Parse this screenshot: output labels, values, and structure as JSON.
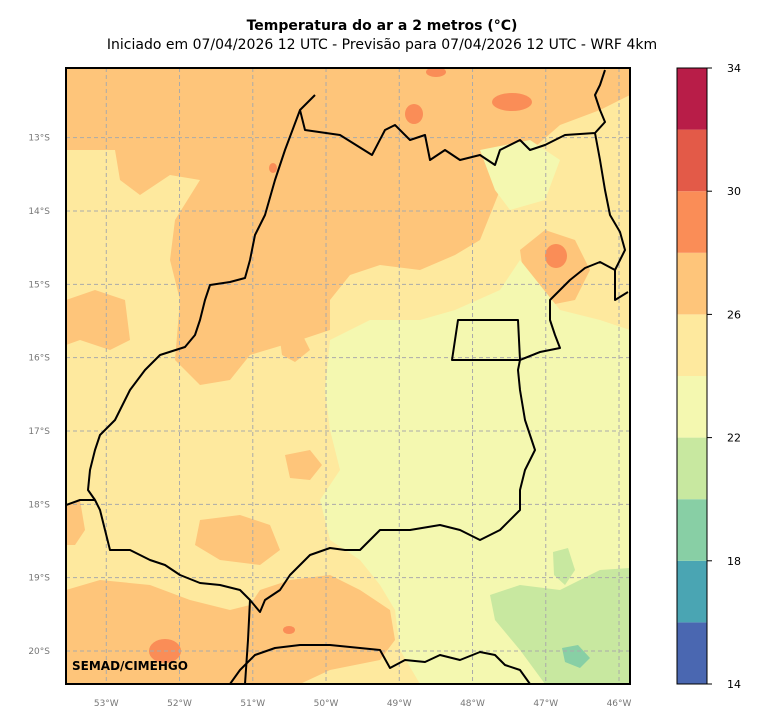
{
  "header": {
    "title": "Temperatura do ar a 2 metros (°C)",
    "subtitle": "Iniciado em 07/04/2026 12 UTC - Previsão para 07/04/2026 12 UTC - WRF 4km"
  },
  "map": {
    "credit": "SEMAD/CIMEHGO",
    "lon_ticks": [
      "53°W",
      "52°W",
      "51°W",
      "50°W",
      "49°W",
      "48°W",
      "47°W",
      "46°W"
    ],
    "lat_ticks": [
      "13°S",
      "14°S",
      "15°S",
      "16°S",
      "17°S",
      "18°S",
      "19°S",
      "20°S"
    ],
    "lon_range": [
      -53.55,
      -45.85
    ],
    "lat_range": [
      -20.45,
      -12.05
    ]
  },
  "colorbar": {
    "ticks": [
      "34",
      "30",
      "26",
      "22",
      "18",
      "14"
    ],
    "levels": [
      14,
      16,
      18,
      20,
      22,
      24,
      26,
      28,
      30,
      32,
      34
    ],
    "colors": [
      "#4a67b1",
      "#4aa5b3",
      "#88cfa5",
      "#c8e8a0",
      "#f4f8b0",
      "#fee99e",
      "#fec57a",
      "#fa8d57",
      "#e35a48",
      "#b81d48"
    ]
  }
}
